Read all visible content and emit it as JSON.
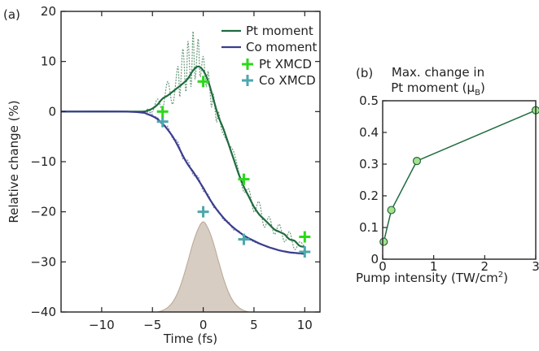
{
  "colors": {
    "pt_moment": "#1f6b3f",
    "pt_moment_raw": "#6a9a7c",
    "co_moment": "#3b3d8c",
    "co_moment_raw": "#7a7cb3",
    "pt_xmcd": "#2bd91a",
    "co_xmcd": "#4ca7ad",
    "pulse_fill": "#d8cdc2",
    "pulse_stroke": "#b6a795",
    "panel_b_line": "#1f6b3f",
    "panel_b_marker": "#a8e08c"
  },
  "chart_data": [
    {
      "type": "line",
      "panel_label": "(a)",
      "xlabel": "Time (fs)",
      "ylabel": "Relative change (%)",
      "xlim": [
        -14,
        11.5
      ],
      "ylim": [
        -40,
        20
      ],
      "xticks": [
        -10,
        -5,
        0,
        5,
        10
      ],
      "yticks": [
        20,
        10,
        0,
        -10,
        -20,
        -30,
        -40
      ],
      "tick_labels_x": [
        "−10",
        "−5",
        "0",
        "5",
        "10"
      ],
      "tick_labels_y": [
        "20",
        "10",
        "0",
        "−10",
        "−20",
        "−30",
        "−40"
      ],
      "legend_position": "top-right",
      "series": [
        {
          "name": "Pt moment",
          "kind": "line",
          "x": [
            -14,
            -8,
            -6,
            -5.5,
            -5,
            -4.5,
            -4,
            -3.5,
            -3,
            -2.5,
            -2,
            -1.5,
            -1,
            -0.5,
            0,
            0.5,
            1,
            1.5,
            2,
            2.5,
            3,
            3.5,
            4,
            4.5,
            5,
            5.5,
            6,
            6.5,
            7,
            7.5,
            8,
            8.5,
            9,
            9.5,
            10
          ],
          "y": [
            0,
            0,
            0,
            0.2,
            0.6,
            1.4,
            2.6,
            3.2,
            4.0,
            4.8,
            5.6,
            6.6,
            8.2,
            9.0,
            8.2,
            6.0,
            2.5,
            -1.0,
            -3.5,
            -6.5,
            -9.5,
            -12.5,
            -15.0,
            -17.0,
            -19.0,
            -20.5,
            -21.5,
            -22.5,
            -23.5,
            -24.0,
            -24.5,
            -25.5,
            -25.8,
            -26.8,
            -27.0
          ]
        },
        {
          "name": "",
          "kind": "raw-oscillation",
          "x": [
            -14,
            -6,
            -5.5,
            -5,
            -4.5,
            -4,
            -3.5,
            -3,
            -2.5,
            -2.3,
            -2,
            -1.7,
            -1.5,
            -1.2,
            -1,
            -0.8,
            -0.5,
            -0.3,
            0,
            0.3,
            0.5,
            0.8,
            1,
            1.3,
            1.5,
            1.8,
            2,
            2.5,
            3,
            3.5,
            4,
            4.5,
            5,
            5.5,
            6,
            6.5,
            7,
            7.5,
            8,
            8.5,
            9,
            9.5,
            10
          ],
          "y": [
            0,
            0,
            0.5,
            0.0,
            2.5,
            0.5,
            6.0,
            1.5,
            9.0,
            3.0,
            12.5,
            4.0,
            14.0,
            5.0,
            16.0,
            6.5,
            14.5,
            7.0,
            11.0,
            5.0,
            8.0,
            1.0,
            3.5,
            -2.0,
            0.0,
            -3.5,
            -4.5,
            -6.5,
            -8.0,
            -12.0,
            -16.0,
            -15.5,
            -20.0,
            -18.0,
            -23.0,
            -21.0,
            -24.5,
            -22.5,
            -26.0,
            -24.0,
            -27.5,
            -26.0,
            -27.0
          ]
        },
        {
          "name": "Co moment",
          "kind": "line",
          "x": [
            -14,
            -8,
            -6,
            -5.5,
            -5,
            -4.5,
            -4,
            -3.5,
            -3,
            -2.5,
            -2,
            -1.5,
            -1,
            -0.5,
            0,
            0.5,
            1,
            1.5,
            2,
            2.5,
            3,
            3.5,
            4,
            4.5,
            5,
            5.5,
            6,
            6.5,
            7,
            7.5,
            8,
            8.5,
            9,
            9.5,
            10
          ],
          "y": [
            0,
            0,
            -0.2,
            -0.5,
            -0.9,
            -1.5,
            -2.4,
            -3.6,
            -5.0,
            -6.8,
            -8.8,
            -10.6,
            -12.0,
            -13.6,
            -15.2,
            -17.0,
            -18.6,
            -20.0,
            -21.2,
            -22.3,
            -23.2,
            -24.0,
            -24.7,
            -25.3,
            -25.8,
            -26.3,
            -26.7,
            -27.1,
            -27.4,
            -27.7,
            -27.9,
            -28.1,
            -28.2,
            -28.3,
            -28.4
          ]
        },
        {
          "name": "",
          "kind": "raw-oscillation",
          "x": [
            -14,
            -6,
            -5,
            -4.5,
            -4,
            -3.5,
            -3,
            -2.5,
            -2,
            -1.5,
            -1,
            -0.5,
            0,
            0.5,
            1,
            1.5,
            2,
            2.5,
            3,
            3.5,
            4,
            5,
            6,
            7,
            8,
            9,
            10
          ],
          "y": [
            0,
            0,
            -1.0,
            -1.2,
            -2.8,
            -3.0,
            -5.4,
            -6.0,
            -9.4,
            -9.8,
            -12.6,
            -13.0,
            -15.8,
            -16.6,
            -19.0,
            -19.8,
            -21.6,
            -22.0,
            -23.6,
            -23.8,
            -24.9,
            -26.0,
            -26.8,
            -27.5,
            -28.0,
            -28.3,
            -28.4
          ]
        },
        {
          "name": "Pt XMCD",
          "kind": "marker-plus",
          "x": [
            -4,
            0,
            4,
            10
          ],
          "y": [
            0,
            6,
            -13.5,
            -25
          ]
        },
        {
          "name": "Co XMCD",
          "kind": "marker-plus",
          "x": [
            -4,
            0,
            4,
            10
          ],
          "y": [
            -2,
            -20,
            -25.5,
            -28
          ]
        },
        {
          "name": "",
          "kind": "pulse",
          "x": [
            -4.5,
            -4,
            -3.5,
            -3,
            -2.5,
            -2,
            -1.5,
            -1,
            -0.5,
            0,
            0.5,
            1,
            1.5,
            2,
            2.5,
            3,
            3.5,
            4,
            4.5
          ],
          "y": [
            -40,
            -39.7,
            -39.1,
            -38.0,
            -36.1,
            -33.3,
            -29.8,
            -26.2,
            -23.4,
            -22.0,
            -23.4,
            -26.2,
            -29.8,
            -33.3,
            -36.1,
            -38.0,
            -39.1,
            -39.7,
            -40
          ]
        }
      ]
    },
    {
      "type": "line",
      "panel_label": "(b)",
      "title": "Max. change in\nPt moment (μB)",
      "title_line1": "Max. change in",
      "title_line2": "Pt moment (μ",
      "title_line2_sub": "B",
      "title_line2_end": ")",
      "xlabel": "Pump intensity (TW/cm",
      "xlabel_sup": "2",
      "xlabel_end": ")",
      "xlim": [
        0,
        3
      ],
      "ylim": [
        0,
        0.5
      ],
      "xticks": [
        0,
        1,
        2,
        3
      ],
      "yticks": [
        0.5,
        0.4,
        0.3,
        0.2,
        0.1,
        0
      ],
      "tick_labels_x": [
        "0",
        "1",
        "2",
        "3"
      ],
      "tick_labels_y": [
        "0.5",
        "0.4",
        "0.3",
        "0.2",
        "0.1",
        "0"
      ],
      "series": [
        {
          "name": "",
          "x": [
            0.02,
            0.17,
            0.67,
            3.0
          ],
          "y": [
            0.055,
            0.155,
            0.31,
            0.47
          ]
        }
      ]
    }
  ]
}
